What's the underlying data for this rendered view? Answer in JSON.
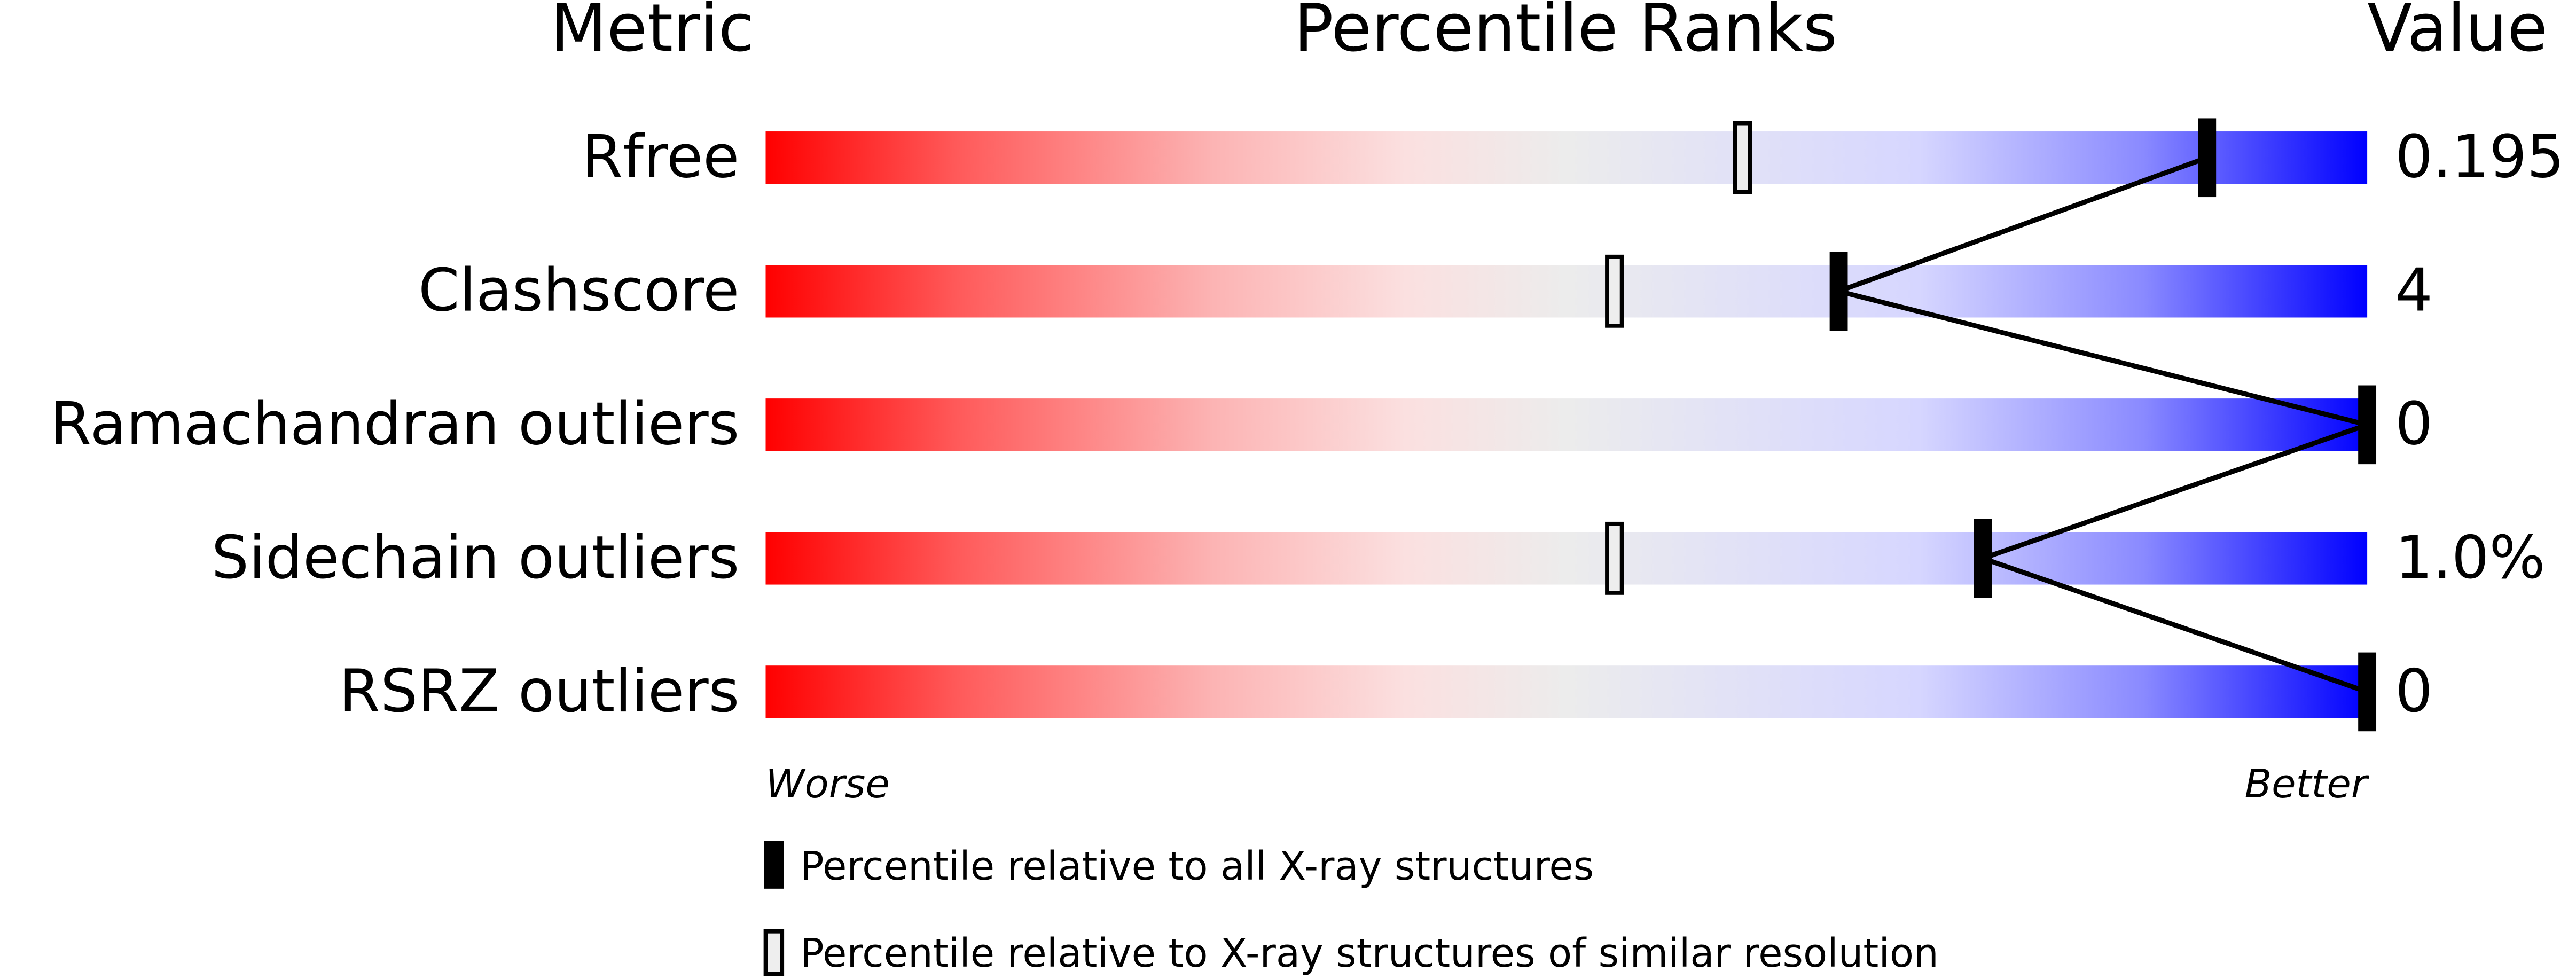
{
  "chart_data": {
    "type": "percentile",
    "headers": [
      "Metric",
      "Percentile Ranks",
      "Value"
    ],
    "categories": [
      "Rfree",
      "Clashscore",
      "Ramachandran outliers",
      "Sidechain outliers",
      "RSRZ outliers"
    ],
    "metric_values": [
      "0.195",
      "4",
      "0",
      "1.0%",
      "0"
    ],
    "series": [
      {
        "name": "Percentile relative to all X-ray structures",
        "color": "#000000",
        "style": "filled",
        "values": [
          90,
          67,
          100,
          76,
          100
        ]
      },
      {
        "name": "Percentile relative to X-ray structures of similar resolution",
        "color": "#000000",
        "style": "hollow",
        "values": [
          61,
          53,
          null,
          53,
          null
        ]
      }
    ],
    "xlim": [
      0,
      100
    ],
    "x_start_label": "Worse",
    "x_end_label": "Better"
  }
}
